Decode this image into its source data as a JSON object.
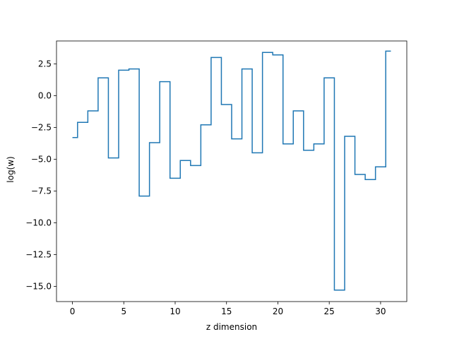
{
  "chart_data": {
    "type": "line",
    "drawstyle": "steps-mid",
    "title": "",
    "xlabel": "z dimension",
    "ylabel": "log(w)",
    "xlim": [
      -1.55,
      32.55
    ],
    "ylim": [
      -16.2,
      4.3
    ],
    "xticks": [
      0,
      5,
      10,
      15,
      20,
      25,
      30
    ],
    "yticks": [
      -15.0,
      -12.5,
      -10.0,
      -7.5,
      -5.0,
      -2.5,
      0.0,
      2.5
    ],
    "yticklabels": [
      "−15.0",
      "−12.5",
      "−10.0",
      "−7.5",
      "−5.0",
      "−2.5",
      "0.0",
      "2.5"
    ],
    "grid": false,
    "legend": "none",
    "series": [
      {
        "color": "#1f77b4",
        "x": [
          0,
          1,
          2,
          3,
          4,
          5,
          6,
          7,
          8,
          9,
          10,
          11,
          12,
          13,
          14,
          15,
          16,
          17,
          18,
          19,
          20,
          21,
          22,
          23,
          24,
          25,
          26,
          27,
          28,
          29,
          30,
          31
        ],
        "y": [
          -3.3,
          -2.1,
          -1.2,
          1.4,
          -4.9,
          2.0,
          2.1,
          -7.9,
          -3.7,
          1.1,
          -6.5,
          -5.1,
          -5.5,
          -2.3,
          3.0,
          -0.7,
          -3.4,
          2.1,
          -4.5,
          3.4,
          3.2,
          -3.8,
          -1.2,
          -4.3,
          -3.8,
          1.4,
          -15.3,
          -3.2,
          -6.2,
          -6.6,
          -5.6,
          3.5
        ]
      }
    ]
  }
}
